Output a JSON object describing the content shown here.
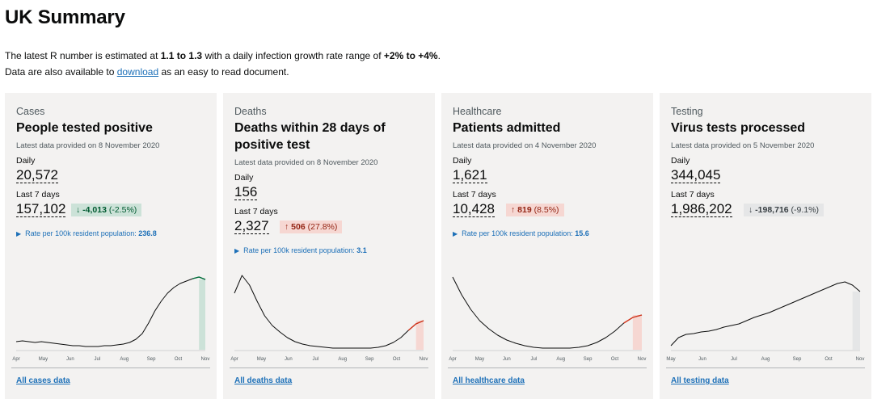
{
  "page": {
    "title": "UK Summary",
    "intro_1_a": "The latest R number is estimated at ",
    "intro_1_b": "1.1 to 1.3",
    "intro_1_c": " with a daily infection growth rate range of ",
    "intro_1_d": "+2% to +4%",
    "intro_1_e": ".",
    "intro_2_a": "Data are also available to ",
    "intro_2_link": "download",
    "intro_2_b": " as an easy to read document."
  },
  "cards": [
    {
      "caption": "Cases",
      "heading": "People tested positive",
      "meta": "Latest data provided on 8 November 2020",
      "daily_label": "Daily",
      "daily_value": "20,572",
      "week_label": "Last 7 days",
      "week_value": "157,102",
      "change_arrow": "↓",
      "change_value": "-4,013",
      "change_pct": "(-2.5%)",
      "rate_text": "Rate per 100k resident population:",
      "rate_value": "236.8",
      "link": "All cases data"
    },
    {
      "caption": "Deaths",
      "heading": "Deaths within 28 days of positive test",
      "meta": "Latest data provided on 8 November 2020",
      "daily_label": "Daily",
      "daily_value": "156",
      "week_label": "Last 7 days",
      "week_value": "2,327",
      "change_arrow": "↑",
      "change_value": "506",
      "change_pct": "(27.8%)",
      "rate_text": "Rate per 100k resident population:",
      "rate_value": "3.1",
      "link": "All deaths data"
    },
    {
      "caption": "Healthcare",
      "heading": "Patients admitted",
      "meta": "Latest data provided on 4 November 2020",
      "daily_label": "Daily",
      "daily_value": "1,621",
      "week_label": "Last 7 days",
      "week_value": "10,428",
      "change_arrow": "↑",
      "change_value": "819",
      "change_pct": "(8.5%)",
      "rate_text": "Rate per 100k resident population:",
      "rate_value": "15.6",
      "link": "All healthcare data"
    },
    {
      "caption": "Testing",
      "heading": "Virus tests processed",
      "meta": "Latest data provided on 5 November 2020",
      "daily_label": "Daily",
      "daily_value": "344,045",
      "week_label": "Last 7 days",
      "week_value": "1,986,202",
      "change_arrow": "↓",
      "change_value": "-198,716",
      "change_pct": "(-9.1%)",
      "link": "All testing data"
    }
  ],
  "colors": {
    "green": "#00703c",
    "green_fill": "#cce2d8",
    "red": "#d4351c",
    "red_fill": "#f6d7d2",
    "grey_fill": "#e5e6e7",
    "line": "#0b0c0c",
    "link": "#1d70b8"
  },
  "chart_data": [
    {
      "type": "line",
      "series": [
        {
          "values": [
            0.1,
            0.11,
            0.1,
            0.09,
            0.1,
            0.09,
            0.08,
            0.07,
            0.06,
            0.05,
            0.05,
            0.04,
            0.04,
            0.04,
            0.05,
            0.05,
            0.06,
            0.07,
            0.09,
            0.13,
            0.2,
            0.33,
            0.48,
            0.6,
            0.7,
            0.77,
            0.82,
            0.85,
            0.88,
            0.9,
            0.87
          ]
        }
      ],
      "x_ticks": [
        "Apr",
        "May",
        "Jun",
        "Jul",
        "Aug",
        "Sep",
        "Oct",
        "Nov"
      ],
      "highlight": "last-7-days",
      "highlight_color": "green"
    },
    {
      "type": "line",
      "series": [
        {
          "values": [
            0.7,
            0.92,
            0.8,
            0.6,
            0.42,
            0.3,
            0.22,
            0.15,
            0.1,
            0.07,
            0.05,
            0.04,
            0.03,
            0.02,
            0.02,
            0.02,
            0.02,
            0.02,
            0.02,
            0.03,
            0.05,
            0.09,
            0.15,
            0.24,
            0.32,
            0.36
          ]
        }
      ],
      "x_ticks": [
        "Apr",
        "May",
        "Jun",
        "Jul",
        "Aug",
        "Sep",
        "Oct",
        "Nov"
      ],
      "highlight": "last-7-days",
      "highlight_color": "red"
    },
    {
      "type": "line",
      "series": [
        {
          "values": [
            0.9,
            0.68,
            0.5,
            0.36,
            0.26,
            0.18,
            0.12,
            0.08,
            0.05,
            0.03,
            0.02,
            0.02,
            0.02,
            0.02,
            0.03,
            0.05,
            0.09,
            0.15,
            0.23,
            0.33,
            0.4,
            0.43
          ]
        }
      ],
      "x_ticks": [
        "Apr",
        "May",
        "Jun",
        "Jul",
        "Aug",
        "Sep",
        "Oct",
        "Nov"
      ],
      "highlight": "last-7-days",
      "highlight_color": "red"
    },
    {
      "type": "line",
      "series": [
        {
          "values": [
            0.05,
            0.15,
            0.19,
            0.2,
            0.22,
            0.23,
            0.25,
            0.28,
            0.3,
            0.32,
            0.36,
            0.4,
            0.43,
            0.46,
            0.5,
            0.54,
            0.58,
            0.62,
            0.66,
            0.7,
            0.74,
            0.78,
            0.82,
            0.84,
            0.8,
            0.72
          ]
        }
      ],
      "x_ticks": [
        "May",
        "Jun",
        "Jul",
        "Aug",
        "Sep",
        "Oct",
        "Nov"
      ],
      "highlight": "last-7-days",
      "highlight_color": "grey"
    }
  ]
}
